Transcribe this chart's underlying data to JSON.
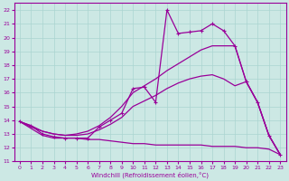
{
  "xlabel": "Windchill (Refroidissement éolien,°C)",
  "background_color": "#cce8e4",
  "grid_color": "#aad4d0",
  "line_color": "#990099",
  "x_ticks": [
    0,
    1,
    2,
    3,
    4,
    5,
    6,
    7,
    8,
    9,
    10,
    11,
    12,
    13,
    14,
    15,
    16,
    17,
    18,
    19,
    20,
    21,
    22,
    23
  ],
  "y_ticks": [
    11,
    12,
    13,
    14,
    15,
    16,
    17,
    18,
    19,
    20,
    21,
    22
  ],
  "xlim": [
    -0.5,
    23.5
  ],
  "ylim": [
    11.0,
    22.5
  ],
  "y_main": [
    13.9,
    13.6,
    13.0,
    12.8,
    12.7,
    12.7,
    12.7,
    13.5,
    14.0,
    14.5,
    16.3,
    16.4,
    15.3,
    22.0,
    20.3,
    20.4,
    20.5,
    21.0,
    20.5,
    19.4,
    16.8,
    15.3,
    12.9,
    11.5
  ],
  "y_upper": [
    13.9,
    13.6,
    13.2,
    13.0,
    12.9,
    13.0,
    13.2,
    13.6,
    14.2,
    15.0,
    16.0,
    16.5,
    17.0,
    17.6,
    18.1,
    18.6,
    19.1,
    19.4,
    19.4,
    19.4,
    16.8,
    15.3,
    12.9,
    11.5
  ],
  "y_mid": [
    13.9,
    13.5,
    13.2,
    13.0,
    12.9,
    12.9,
    13.0,
    13.3,
    13.7,
    14.2,
    15.0,
    15.4,
    15.8,
    16.3,
    16.7,
    17.0,
    17.2,
    17.3,
    17.0,
    16.5,
    16.8,
    15.3,
    12.9,
    11.5
  ],
  "y_bottom": [
    13.9,
    13.4,
    12.9,
    12.7,
    12.7,
    12.7,
    12.6,
    12.6,
    12.5,
    12.4,
    12.3,
    12.3,
    12.2,
    12.2,
    12.2,
    12.2,
    12.2,
    12.1,
    12.1,
    12.1,
    12.0,
    12.0,
    11.9,
    11.5
  ]
}
